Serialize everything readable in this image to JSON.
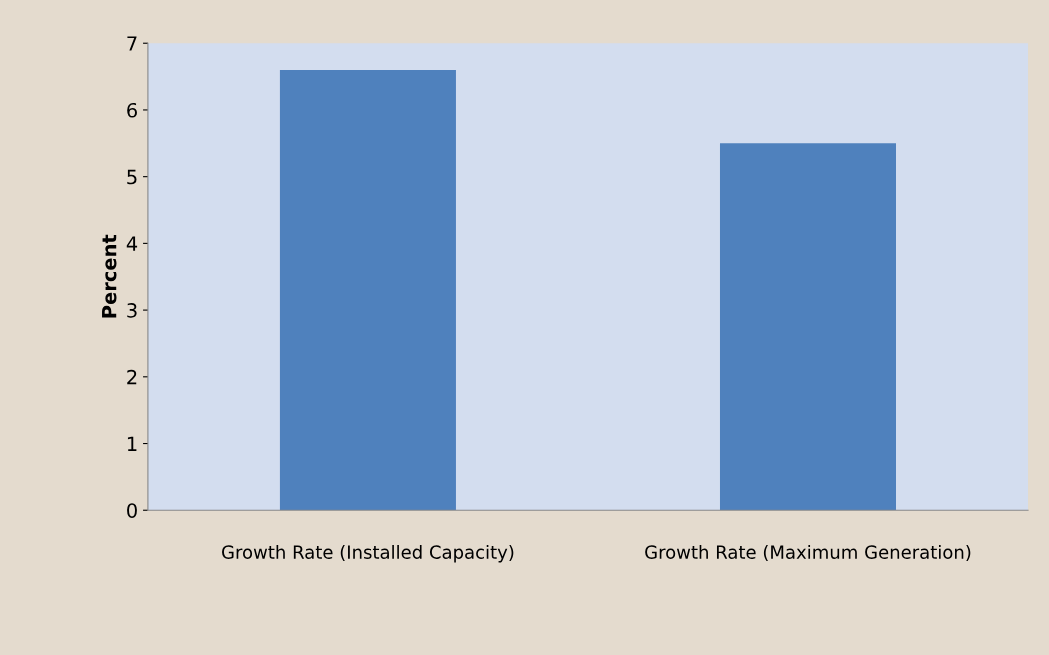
{
  "chart_data": {
    "type": "bar",
    "ylabel": "Percent",
    "categories": [
      "Growth Rate (Installed Capacity)",
      "Growth Rate (Maximum Generation)"
    ],
    "values": [
      6.6,
      5.5
    ],
    "color": "#4f81bd",
    "ylim": [
      0,
      7
    ],
    "yticks": [
      0,
      1,
      2,
      3,
      4,
      5,
      6,
      7
    ],
    "grid": false,
    "legend": false
  }
}
